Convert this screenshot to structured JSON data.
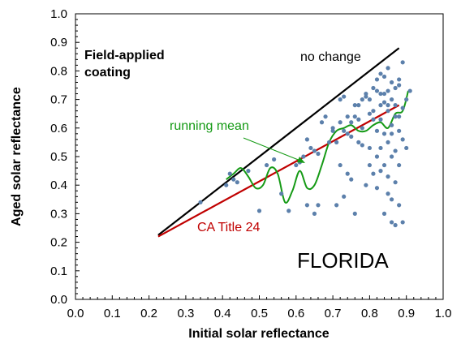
{
  "chart_data": {
    "type": "scatter",
    "title": "",
    "xlabel": "Initial solar reflectance",
    "ylabel": "Aged solar reflectance",
    "xlim": [
      0.0,
      1.0
    ],
    "ylim": [
      0.0,
      1.0
    ],
    "x_ticks": [
      "0.0",
      "0.1",
      "0.2",
      "0.3",
      "0.4",
      "0.5",
      "0.6",
      "0.7",
      "0.8",
      "0.9",
      "1.0"
    ],
    "y_ticks": [
      "0.0",
      "0.1",
      "0.2",
      "0.3",
      "0.4",
      "0.5",
      "0.6",
      "0.7",
      "0.8",
      "0.9",
      "1.0"
    ],
    "grid": false,
    "annotations": {
      "panel_label_line1": "Field-applied",
      "panel_label_line2": "coating",
      "no_change": "no change",
      "running_mean": "running mean",
      "ca_title24": "CA Title 24",
      "region": "FLORIDA"
    },
    "series": [
      {
        "kind": "line",
        "color": "#000000",
        "x": [
          0.225,
          0.88
        ],
        "y": [
          0.225,
          0.88
        ]
      },
      {
        "kind": "line",
        "color": "#c00000",
        "x": [
          0.225,
          0.88
        ],
        "y": [
          0.22,
          0.68
        ]
      },
      {
        "kind": "smooth-line",
        "color": "#159a15",
        "x": [
          0.41,
          0.43,
          0.45,
          0.47,
          0.49,
          0.51,
          0.53,
          0.55,
          0.57,
          0.59,
          0.61,
          0.63,
          0.65,
          0.67,
          0.69,
          0.71,
          0.73,
          0.75,
          0.77,
          0.79,
          0.81,
          0.83,
          0.85,
          0.87,
          0.89,
          0.905
        ],
        "y": [
          0.42,
          0.44,
          0.46,
          0.43,
          0.39,
          0.4,
          0.46,
          0.44,
          0.34,
          0.38,
          0.45,
          0.39,
          0.4,
          0.47,
          0.55,
          0.59,
          0.6,
          0.61,
          0.59,
          0.59,
          0.61,
          0.62,
          0.6,
          0.65,
          0.66,
          0.73
        ]
      },
      {
        "kind": "scatter",
        "color": "#5c80ab",
        "x": [
          0.34,
          0.41,
          0.42,
          0.43,
          0.44,
          0.47,
          0.5,
          0.52,
          0.54,
          0.56,
          0.58,
          0.6,
          0.61,
          0.62,
          0.63,
          0.63,
          0.64,
          0.65,
          0.65,
          0.66,
          0.66,
          0.67,
          0.68,
          0.69,
          0.7,
          0.7,
          0.71,
          0.71,
          0.72,
          0.72,
          0.72,
          0.73,
          0.73,
          0.73,
          0.74,
          0.74,
          0.74,
          0.75,
          0.75,
          0.75,
          0.76,
          0.76,
          0.76,
          0.77,
          0.77,
          0.77,
          0.78,
          0.78,
          0.78,
          0.79,
          0.79,
          0.79,
          0.8,
          0.8,
          0.8,
          0.8,
          0.81,
          0.81,
          0.81,
          0.81,
          0.82,
          0.82,
          0.82,
          0.82,
          0.82,
          0.83,
          0.83,
          0.83,
          0.83,
          0.83,
          0.83,
          0.84,
          0.84,
          0.84,
          0.84,
          0.84,
          0.84,
          0.85,
          0.85,
          0.85,
          0.85,
          0.85,
          0.85,
          0.85,
          0.86,
          0.86,
          0.86,
          0.86,
          0.86,
          0.86,
          0.86,
          0.87,
          0.87,
          0.87,
          0.87,
          0.87,
          0.87,
          0.88,
          0.88,
          0.88,
          0.88,
          0.88,
          0.88,
          0.89,
          0.89,
          0.89,
          0.89,
          0.9,
          0.9,
          0.91
        ],
        "y": [
          0.34,
          0.4,
          0.44,
          0.42,
          0.41,
          0.45,
          0.31,
          0.47,
          0.49,
          0.37,
          0.31,
          0.47,
          0.48,
          0.5,
          0.33,
          0.56,
          0.53,
          0.3,
          0.52,
          0.33,
          0.51,
          0.62,
          0.64,
          0.55,
          0.6,
          0.59,
          0.33,
          0.55,
          0.62,
          0.47,
          0.7,
          0.71,
          0.36,
          0.59,
          0.58,
          0.44,
          0.64,
          0.62,
          0.42,
          0.57,
          0.64,
          0.3,
          0.68,
          0.68,
          0.55,
          0.63,
          0.7,
          0.54,
          0.6,
          0.71,
          0.4,
          0.72,
          0.53,
          0.7,
          0.47,
          0.65,
          0.66,
          0.44,
          0.63,
          0.74,
          0.73,
          0.59,
          0.5,
          0.39,
          0.77,
          0.68,
          0.63,
          0.53,
          0.45,
          0.72,
          0.79,
          0.72,
          0.58,
          0.47,
          0.3,
          0.78,
          0.69,
          0.68,
          0.55,
          0.43,
          0.81,
          0.73,
          0.66,
          0.37,
          0.7,
          0.61,
          0.5,
          0.35,
          0.76,
          0.58,
          0.27,
          0.64,
          0.52,
          0.41,
          0.74,
          0.68,
          0.26,
          0.75,
          0.59,
          0.33,
          0.47,
          0.64,
          0.77,
          0.83,
          0.67,
          0.56,
          0.27,
          0.7,
          0.53,
          0.73
        ]
      }
    ]
  }
}
